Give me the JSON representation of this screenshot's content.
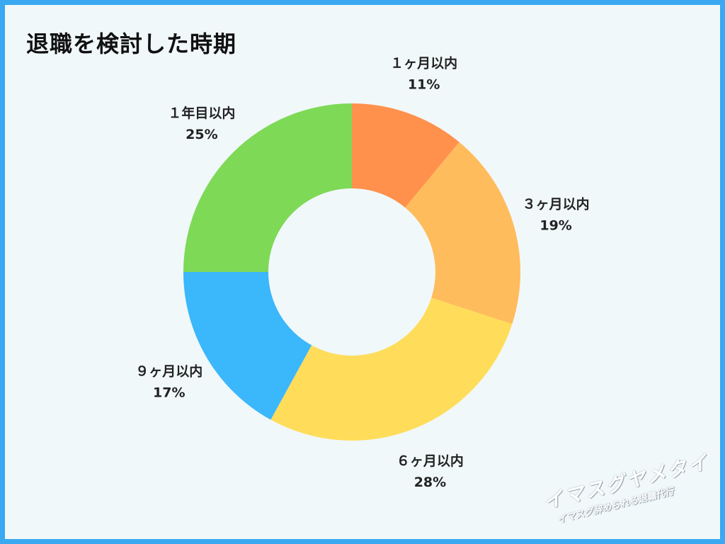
{
  "title": "退職を検討した時期",
  "chart_data": {
    "type": "pie",
    "style": "donut",
    "title": "退職を検討した時期",
    "slices": [
      {
        "label": "１ヶ月以内",
        "value": 11,
        "value_label": "11%",
        "color": "#FF914D"
      },
      {
        "label": "３ヶ月以内",
        "value": 19,
        "value_label": "19%",
        "color": "#FFBC5C"
      },
      {
        "label": "６ヶ月以内",
        "value": 28,
        "value_label": "28%",
        "color": "#FFDD5A"
      },
      {
        "label": "９ヶ月以内",
        "value": 17,
        "value_label": "17%",
        "color": "#3BB7FB"
      },
      {
        "label": "１年目以内",
        "value": 25,
        "value_label": "25%",
        "color": "#7ED957"
      }
    ]
  },
  "watermark": {
    "main": "イマスグヤメタイ",
    "sub": "イマスグ辞められる退職代行"
  },
  "colors": {
    "border": "#3BA9F2",
    "background": "#F1F8FA"
  }
}
